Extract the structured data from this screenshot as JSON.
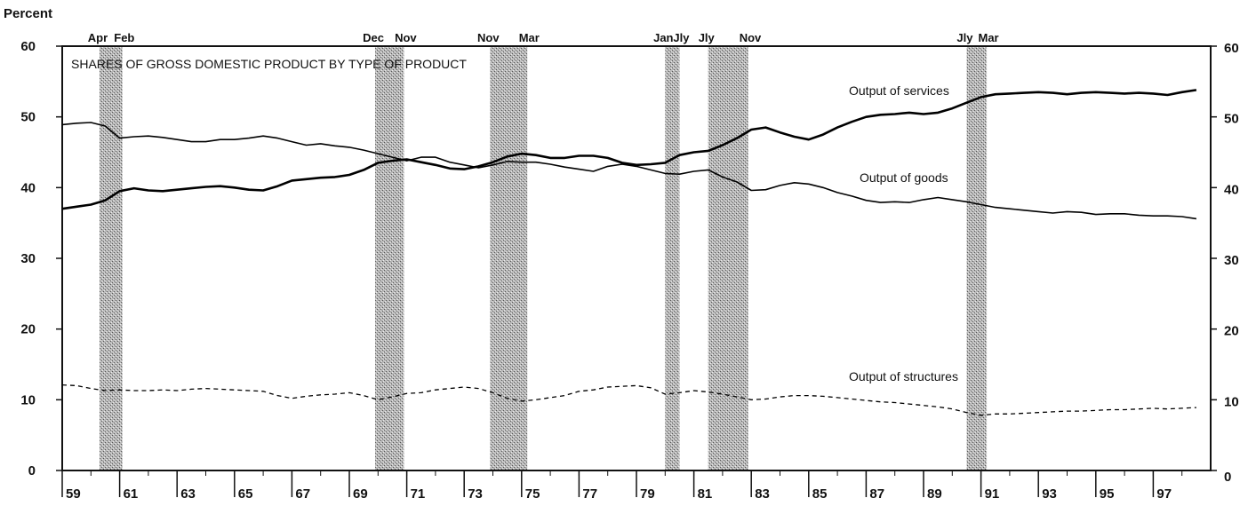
{
  "chart_data": {
    "type": "line",
    "title": "SHARES OF GROSS DOMESTIC PRODUCT BY TYPE OF PRODUCT",
    "ylabel": "Percent",
    "xlabel": "",
    "ylim": [
      0,
      60
    ],
    "xlim": [
      1959.0,
      1999.0
    ],
    "y_ticks_left": [
      0,
      10,
      20,
      30,
      40,
      50,
      60
    ],
    "y_ticks_right": [
      0,
      10,
      20,
      30,
      40,
      50,
      60
    ],
    "x_tick_labels": [
      "59",
      "61",
      "63",
      "65",
      "67",
      "69",
      "71",
      "73",
      "75",
      "77",
      "79",
      "81",
      "83",
      "85",
      "87",
      "89",
      "91",
      "93",
      "95",
      "97"
    ],
    "x_tick_years": [
      1959,
      1961,
      1963,
      1965,
      1967,
      1969,
      1971,
      1973,
      1975,
      1977,
      1979,
      1981,
      1983,
      1985,
      1987,
      1989,
      1991,
      1993,
      1995,
      1997
    ],
    "grid": false,
    "recessions": [
      {
        "start": 1960.3,
        "end": 1961.1,
        "start_label": "Apr",
        "end_label": "Feb"
      },
      {
        "start": 1969.9,
        "end": 1970.9,
        "start_label": "Dec",
        "end_label": "Nov"
      },
      {
        "start": 1973.9,
        "end": 1975.2,
        "start_label": "Nov",
        "end_label": "Mar"
      },
      {
        "start": 1980.0,
        "end": 1980.5,
        "start_label": "Jan",
        "end_label": "Jly"
      },
      {
        "start": 1981.5,
        "end": 1982.9,
        "start_label": "Jly",
        "end_label": "Nov"
      },
      {
        "start": 1990.5,
        "end": 1991.2,
        "start_label": "Jly",
        "end_label": "Mar"
      }
    ],
    "series": [
      {
        "name": "Output of services",
        "style": "thick",
        "x": [
          1959.0,
          1959.5,
          1960.0,
          1960.5,
          1961.0,
          1961.5,
          1962.0,
          1962.5,
          1963.0,
          1963.5,
          1964.0,
          1964.5,
          1965.0,
          1965.5,
          1966.0,
          1966.5,
          1967.0,
          1967.5,
          1968.0,
          1968.5,
          1969.0,
          1969.5,
          1970.0,
          1970.5,
          1971.0,
          1971.5,
          1972.0,
          1972.5,
          1973.0,
          1973.5,
          1974.0,
          1974.5,
          1975.0,
          1975.5,
          1976.0,
          1976.5,
          1977.0,
          1977.5,
          1978.0,
          1978.5,
          1979.0,
          1979.5,
          1980.0,
          1980.5,
          1981.0,
          1981.5,
          1982.0,
          1982.5,
          1983.0,
          1983.5,
          1984.0,
          1984.5,
          1985.0,
          1985.5,
          1986.0,
          1986.5,
          1987.0,
          1987.5,
          1988.0,
          1988.5,
          1989.0,
          1989.5,
          1990.0,
          1990.5,
          1991.0,
          1991.5,
          1992.0,
          1992.5,
          1993.0,
          1993.5,
          1994.0,
          1994.5,
          1995.0,
          1995.5,
          1996.0,
          1996.5,
          1997.0,
          1997.5,
          1998.0,
          1998.5
        ],
        "y": [
          37.0,
          37.3,
          37.6,
          38.2,
          39.5,
          39.9,
          39.6,
          39.5,
          39.7,
          39.9,
          40.1,
          40.2,
          40.0,
          39.7,
          39.6,
          40.2,
          41.0,
          41.2,
          41.4,
          41.5,
          41.8,
          42.5,
          43.5,
          43.8,
          44.0,
          43.6,
          43.2,
          42.7,
          42.6,
          43.0,
          43.6,
          44.4,
          44.8,
          44.6,
          44.2,
          44.2,
          44.5,
          44.5,
          44.2,
          43.5,
          43.2,
          43.3,
          43.5,
          44.6,
          45.0,
          45.2,
          46.0,
          47.0,
          48.2,
          48.5,
          47.8,
          47.2,
          46.8,
          47.5,
          48.5,
          49.3,
          50.0,
          50.3,
          50.4,
          50.6,
          50.4,
          50.6,
          51.2,
          52.0,
          52.8,
          53.2,
          53.3,
          53.4,
          53.5,
          53.4,
          53.2,
          53.4,
          53.5,
          53.4,
          53.3,
          53.4,
          53.3,
          53.1,
          53.5,
          53.8
        ]
      },
      {
        "name": "Output of goods",
        "style": "thin",
        "x": [
          1959.0,
          1959.5,
          1960.0,
          1960.5,
          1961.0,
          1961.5,
          1962.0,
          1962.5,
          1963.0,
          1963.5,
          1964.0,
          1964.5,
          1965.0,
          1965.5,
          1966.0,
          1966.5,
          1967.0,
          1967.5,
          1968.0,
          1968.5,
          1969.0,
          1969.5,
          1970.0,
          1970.5,
          1971.0,
          1971.5,
          1972.0,
          1972.5,
          1973.0,
          1973.5,
          1974.0,
          1974.5,
          1975.0,
          1975.5,
          1976.0,
          1976.5,
          1977.0,
          1977.5,
          1978.0,
          1978.5,
          1979.0,
          1979.5,
          1980.0,
          1980.5,
          1981.0,
          1981.5,
          1982.0,
          1982.5,
          1983.0,
          1983.5,
          1984.0,
          1984.5,
          1985.0,
          1985.5,
          1986.0,
          1986.5,
          1987.0,
          1987.5,
          1988.0,
          1988.5,
          1989.0,
          1989.5,
          1990.0,
          1990.5,
          1991.0,
          1991.5,
          1992.0,
          1992.5,
          1993.0,
          1993.5,
          1994.0,
          1994.5,
          1995.0,
          1995.5,
          1996.0,
          1996.5,
          1997.0,
          1997.5,
          1998.0,
          1998.5
        ],
        "y": [
          48.9,
          49.1,
          49.2,
          48.7,
          47.0,
          47.2,
          47.3,
          47.1,
          46.8,
          46.5,
          46.5,
          46.8,
          46.8,
          47.0,
          47.3,
          47.0,
          46.5,
          46.0,
          46.2,
          45.9,
          45.7,
          45.3,
          44.8,
          44.3,
          43.8,
          44.3,
          44.3,
          43.6,
          43.2,
          42.8,
          43.2,
          43.7,
          43.6,
          43.6,
          43.3,
          42.9,
          42.6,
          42.3,
          43.0,
          43.3,
          43.0,
          42.5,
          42.0,
          41.9,
          42.3,
          42.5,
          41.5,
          40.8,
          39.6,
          39.7,
          40.3,
          40.7,
          40.5,
          40.0,
          39.3,
          38.8,
          38.2,
          37.9,
          38.0,
          37.9,
          38.3,
          38.6,
          38.3,
          38.0,
          37.6,
          37.2,
          37.0,
          36.8,
          36.6,
          36.4,
          36.6,
          36.5,
          36.2,
          36.3,
          36.3,
          36.1,
          36.0,
          36.0,
          35.9,
          35.6
        ]
      },
      {
        "name": "Output of structures",
        "style": "dashed",
        "x": [
          1959.0,
          1959.5,
          1960.0,
          1960.5,
          1961.0,
          1961.5,
          1962.0,
          1962.5,
          1963.0,
          1963.5,
          1964.0,
          1964.5,
          1965.0,
          1965.5,
          1966.0,
          1966.5,
          1967.0,
          1967.5,
          1968.0,
          1968.5,
          1969.0,
          1969.5,
          1970.0,
          1970.5,
          1971.0,
          1971.5,
          1972.0,
          1972.5,
          1973.0,
          1973.5,
          1974.0,
          1974.5,
          1975.0,
          1975.5,
          1976.0,
          1976.5,
          1977.0,
          1977.5,
          1978.0,
          1978.5,
          1979.0,
          1979.5,
          1980.0,
          1980.5,
          1981.0,
          1981.5,
          1982.0,
          1982.5,
          1983.0,
          1983.5,
          1984.0,
          1984.5,
          1985.0,
          1985.5,
          1986.0,
          1986.5,
          1987.0,
          1987.5,
          1988.0,
          1988.5,
          1989.0,
          1989.5,
          1990.0,
          1990.5,
          1991.0,
          1991.5,
          1992.0,
          1992.5,
          1993.0,
          1993.5,
          1994.0,
          1994.5,
          1995.0,
          1995.5,
          1996.0,
          1996.5,
          1997.0,
          1997.5,
          1998.0,
          1998.5
        ],
        "y": [
          12.1,
          12.0,
          11.6,
          11.3,
          11.4,
          11.3,
          11.3,
          11.4,
          11.3,
          11.5,
          11.6,
          11.5,
          11.4,
          11.3,
          11.2,
          10.6,
          10.2,
          10.5,
          10.7,
          10.8,
          11.0,
          10.6,
          10.0,
          10.4,
          10.9,
          11.0,
          11.4,
          11.6,
          11.8,
          11.6,
          11.0,
          10.2,
          9.8,
          10.0,
          10.3,
          10.6,
          11.2,
          11.4,
          11.8,
          11.9,
          12.0,
          11.7,
          10.8,
          11.0,
          11.3,
          11.1,
          10.8,
          10.4,
          10.0,
          10.1,
          10.4,
          10.6,
          10.6,
          10.5,
          10.3,
          10.1,
          9.9,
          9.7,
          9.6,
          9.4,
          9.2,
          9.0,
          8.7,
          8.2,
          7.8,
          8.0,
          8.0,
          8.1,
          8.2,
          8.3,
          8.4,
          8.4,
          8.5,
          8.6,
          8.6,
          8.7,
          8.8,
          8.7,
          8.8,
          8.9
        ]
      }
    ],
    "series_labels": [
      "Output of services",
      "Output of goods",
      "Output of structures"
    ]
  }
}
